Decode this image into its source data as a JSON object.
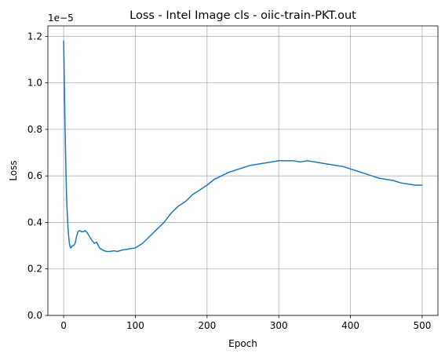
{
  "chart_data": {
    "type": "line",
    "title": "Loss - Intel Image cls - oiic-train-PKT.out",
    "xlabel": "Epoch",
    "ylabel": "Loss",
    "y_offset_label": "1e−5",
    "xlim": [
      -22,
      522
    ],
    "ylim": [
      0,
      1.245
    ],
    "x_ticks": [
      0,
      100,
      200,
      300,
      400,
      500
    ],
    "x_tick_labels": [
      "0",
      "100",
      "200",
      "300",
      "400",
      "500"
    ],
    "y_ticks": [
      0,
      0.2,
      0.4,
      0.6,
      0.8,
      1.0,
      1.2
    ],
    "y_tick_labels": [
      "0.0",
      "0.2",
      "0.4",
      "0.6",
      "0.8",
      "1.0",
      "1.2"
    ],
    "grid": true,
    "line_color": "#1f77b4",
    "series": [
      {
        "x": [
          0,
          1,
          2,
          3,
          4,
          5,
          6,
          7,
          8,
          9,
          10,
          12,
          14,
          16,
          18,
          20,
          22,
          25,
          28,
          30,
          33,
          36,
          40,
          43,
          46,
          50,
          55,
          60,
          65,
          70,
          75,
          80,
          85,
          90,
          95,
          100,
          110,
          120,
          130,
          140,
          150,
          160,
          170,
          180,
          190,
          200,
          210,
          220,
          230,
          240,
          250,
          260,
          270,
          280,
          290,
          300,
          310,
          320,
          330,
          340,
          350,
          360,
          370,
          380,
          390,
          400,
          410,
          420,
          430,
          440,
          450,
          460,
          470,
          480,
          490,
          500
        ],
        "values": [
          1.18,
          1.0,
          0.8,
          0.65,
          0.52,
          0.44,
          0.38,
          0.34,
          0.31,
          0.295,
          0.29,
          0.3,
          0.3,
          0.31,
          0.34,
          0.36,
          0.365,
          0.36,
          0.36,
          0.365,
          0.355,
          0.34,
          0.32,
          0.31,
          0.315,
          0.29,
          0.28,
          0.275,
          0.275,
          0.278,
          0.275,
          0.28,
          0.283,
          0.285,
          0.288,
          0.29,
          0.31,
          0.34,
          0.37,
          0.4,
          0.44,
          0.47,
          0.49,
          0.52,
          0.54,
          0.56,
          0.585,
          0.6,
          0.615,
          0.625,
          0.635,
          0.645,
          0.65,
          0.655,
          0.66,
          0.665,
          0.665,
          0.665,
          0.66,
          0.665,
          0.66,
          0.655,
          0.65,
          0.645,
          0.64,
          0.63,
          0.62,
          0.61,
          0.6,
          0.59,
          0.585,
          0.58,
          0.57,
          0.565,
          0.56,
          0.56
        ]
      }
    ]
  }
}
